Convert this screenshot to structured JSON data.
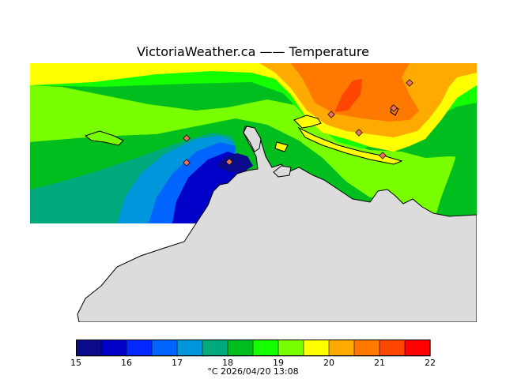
{
  "title": "VictoriaWeather.ca  —— Temperature",
  "caption": "°C  2026/04/20 13:08",
  "legend": {
    "ticks": [
      "15",
      "16",
      "17",
      "18",
      "19",
      "20",
      "21",
      "22"
    ],
    "colors": [
      "#0a0a8a",
      "#0000c8",
      "#0028ff",
      "#0064ff",
      "#0096dc",
      "#00aa7d",
      "#00be1e",
      "#14ff00",
      "#78ff00",
      "#ffff00",
      "#ffaa00",
      "#ff7800",
      "#ff4600",
      "#ff0000"
    ]
  },
  "map_colors": {
    "land": "#dcdcdc",
    "coast": "#000000",
    "station": "#e87060"
  }
}
